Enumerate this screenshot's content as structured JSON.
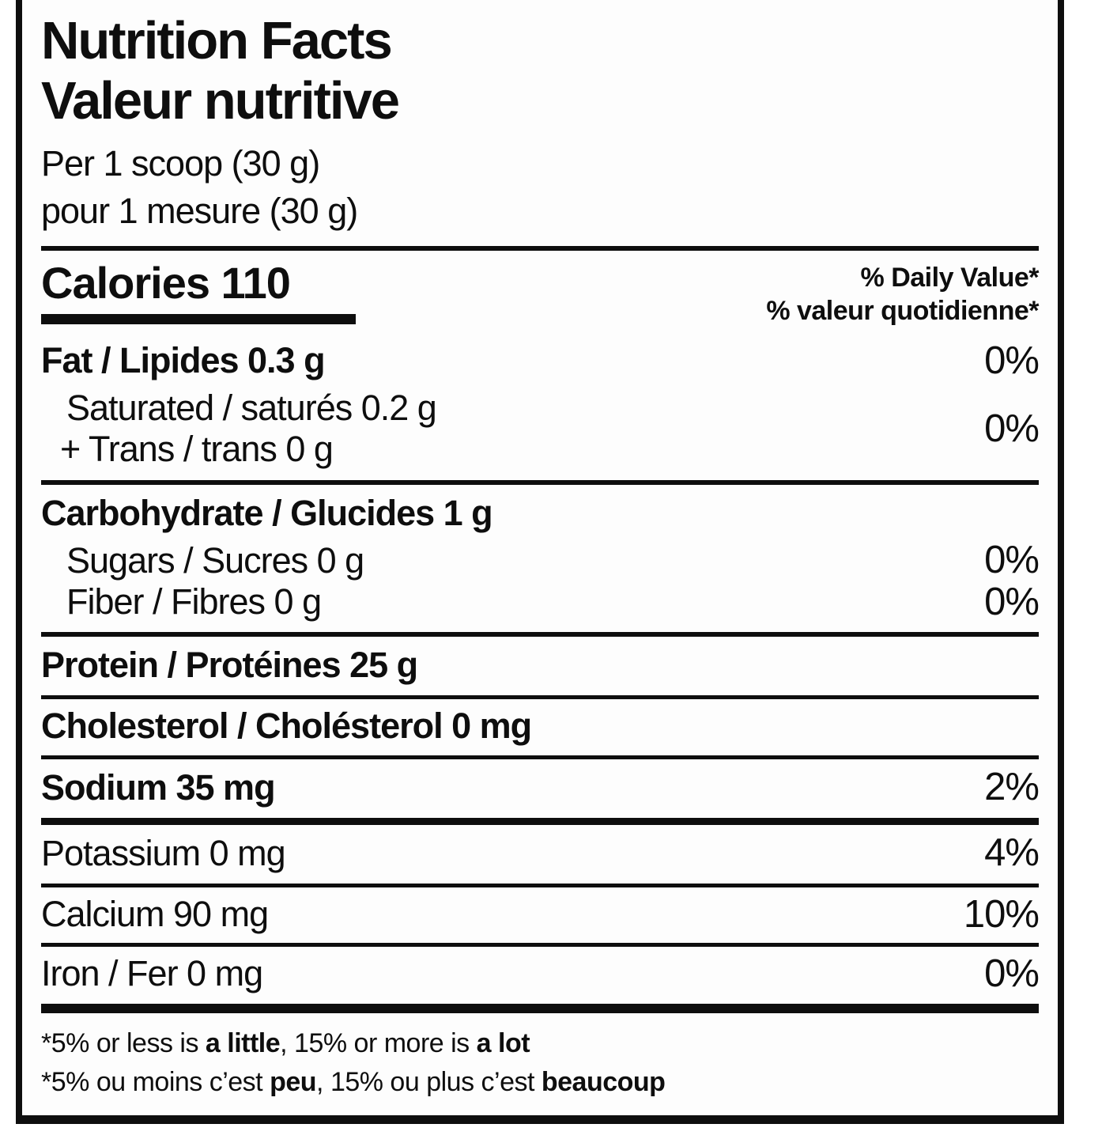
{
  "label": {
    "title_en": "Nutrition Facts",
    "title_fr": "Valeur nutritive",
    "serving_en": "Per 1 scoop (30 g)",
    "serving_fr": "pour 1 mesure (30 g)",
    "calories": "Calories 110",
    "dv_header_en": "% Daily Value*",
    "dv_header_fr": "% valeur quotidienne*",
    "rows": {
      "fat": {
        "label": "Fat / Lipides 0.3 g",
        "dv": "0%"
      },
      "saturated": {
        "label": "Saturated / saturés 0.2 g"
      },
      "trans": {
        "label": "+ Trans / trans 0 g"
      },
      "sat_trans_dv": "0%",
      "carbohydrate": {
        "label": "Carbohydrate / Glucides 1 g"
      },
      "sugars": {
        "label": "Sugars / Sucres 0 g",
        "dv": "0%"
      },
      "fiber": {
        "label": "Fiber / Fibres 0 g",
        "dv": "0%"
      },
      "protein": {
        "label": "Protein / Protéines 25 g"
      },
      "cholesterol": {
        "label": "Cholesterol / Cholésterol 0 mg"
      },
      "sodium": {
        "label": "Sodium 35 mg",
        "dv": "2%"
      },
      "potassium": {
        "label": "Potassium 0 mg",
        "dv": "4%"
      },
      "calcium": {
        "label": "Calcium 90 mg",
        "dv": "10%"
      },
      "iron": {
        "label": "Iron / Fer 0 mg",
        "dv": "0%"
      }
    },
    "footnote_en": {
      "pre": "*5% or less is ",
      "bold1": "a little",
      "mid": ", 15% or more is ",
      "bold2": "a lot"
    },
    "footnote_fr": {
      "pre": "*5% ou moins c’est ",
      "bold1": "peu",
      "mid": ", 15% ou plus c’est ",
      "bold2": "beaucoup"
    },
    "colors": {
      "ink": "#0e0e0e",
      "background": "#fdfdfd"
    }
  }
}
